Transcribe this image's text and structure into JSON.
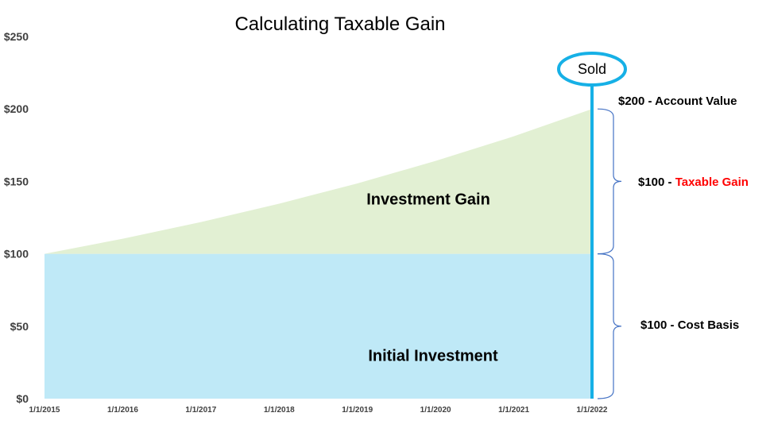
{
  "chart_data": {
    "type": "area",
    "title": "Calculating Taxable Gain",
    "x": [
      "1/1/2015",
      "1/1/2016",
      "1/1/2017",
      "1/1/2018",
      "1/1/2019",
      "1/1/2020",
      "1/1/2021",
      "1/1/2022"
    ],
    "y_ticks": [
      "$0",
      "$50",
      "$100",
      "$150",
      "$200",
      "$250"
    ],
    "ylim": [
      0,
      250
    ],
    "series": [
      {
        "name": "Initial Investment",
        "values": [
          100,
          100,
          100,
          100,
          100,
          100,
          100,
          100
        ]
      },
      {
        "name": "Investment Gain",
        "values": [
          0,
          10.4,
          21.9,
          34.6,
          48.6,
          64.1,
          81.1,
          100
        ]
      }
    ],
    "region_labels": {
      "gain": "Investment Gain",
      "initial": "Initial Investment"
    },
    "annotations": {
      "sold_label": "Sold",
      "sold_at": "1/1/2022",
      "account_value": "$200 - Account Value",
      "taxable_gain_prefix": "$100 - ",
      "taxable_gain_label": "Taxable Gain",
      "cost_basis": "$100 - Cost Basis"
    },
    "colors": {
      "initial": "#bfe9f7",
      "gain": "#e2f0d3",
      "sold_line": "#16b0e6",
      "brace": "#4472c4",
      "highlight": "#ff0000"
    },
    "grid": false,
    "legend": "none"
  }
}
